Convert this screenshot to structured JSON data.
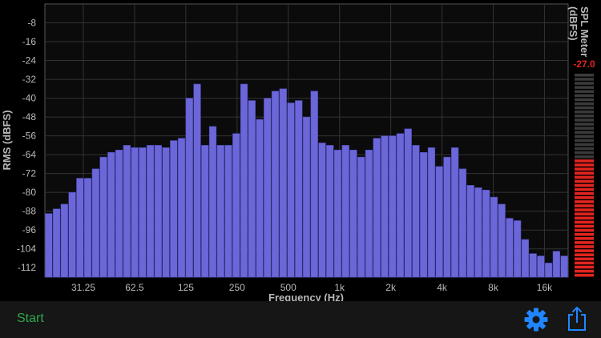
{
  "colors": {
    "bar": "#6b67d8",
    "bar_edge": "#4a46b8",
    "meter_on": "#e3241f",
    "meter_off": "#3a3a3a",
    "meter_value": "#e3241f",
    "start": "#2fa84a",
    "icon": "#1f86ff"
  },
  "meter": {
    "title_line1": "SPL Meter",
    "title_line2": "(dBFS)",
    "value_text": "-27.0",
    "level": 0.58,
    "segments": 50
  },
  "toolbar": {
    "start_label": "Start"
  },
  "icons": {
    "settings": "gear-icon",
    "share": "share-icon"
  },
  "chart_data": {
    "type": "bar",
    "title": "",
    "xlabel": "Frequency (Hz)",
    "ylabel": "RMS (dBFS)",
    "x_tick_labels": [
      "31.25",
      "62.5",
      "125",
      "250",
      "500",
      "1k",
      "2k",
      "4k",
      "8k",
      "16k"
    ],
    "y_ticks": [
      -8,
      -16,
      -24,
      -32,
      -40,
      -48,
      -56,
      -64,
      -72,
      -80,
      -88,
      -96,
      -104,
      -112
    ],
    "ylim": [
      -116,
      0
    ],
    "grid": true,
    "values": [
      -89,
      -87,
      -85,
      -80,
      -74,
      -74,
      -70,
      -65,
      -63,
      -62,
      -60,
      -61,
      -61,
      -60,
      -60,
      -61,
      -58,
      -57,
      -40,
      -34,
      -60,
      -52,
      -60,
      -60,
      -55,
      -34,
      -41,
      -49,
      -40,
      -37,
      -36,
      -42,
      -41,
      -48,
      -37,
      -59,
      -60,
      -62,
      -60,
      -62,
      -65,
      -62,
      -57,
      -56,
      -56,
      -55,
      -53,
      -60,
      -63,
      -61,
      -69,
      -65,
      -61,
      -70,
      -77,
      -78,
      -79,
      -82,
      -85,
      -91,
      -92,
      -100,
      -106,
      -107,
      -110,
      -105,
      -107
    ]
  }
}
